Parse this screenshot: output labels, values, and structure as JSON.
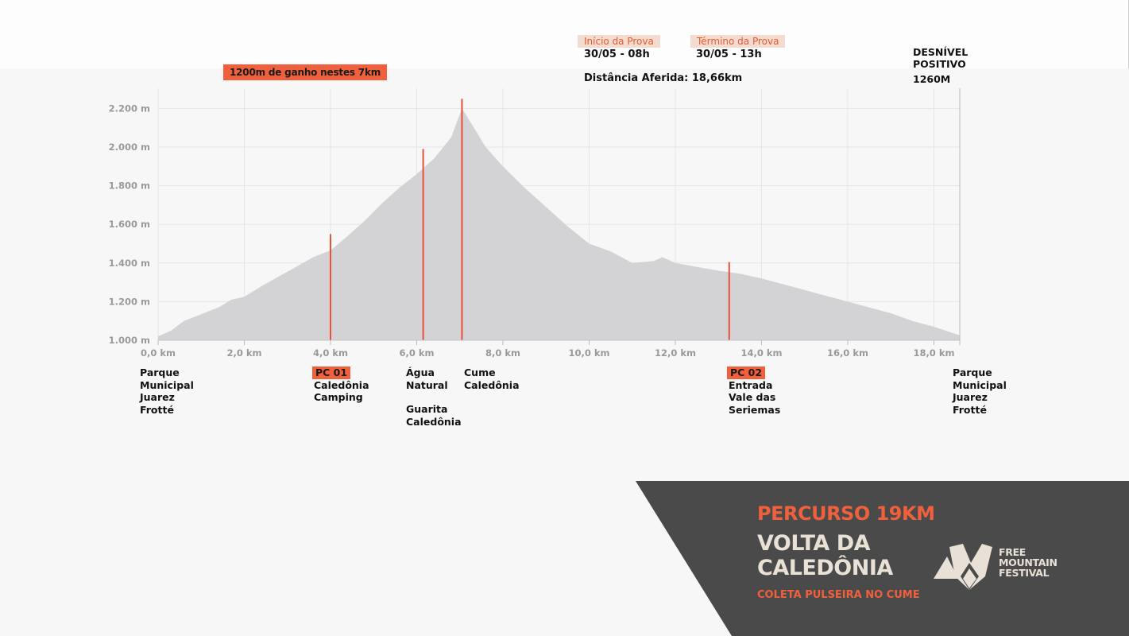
{
  "gain_tag": "1200m de ganho nestes 7km",
  "start": {
    "label": "Início da Prova",
    "value": "30/05 - 08h"
  },
  "end": {
    "label": "Término da Prova",
    "value": "30/05 - 13h"
  },
  "distance": "Distância Aferida: 18,66km",
  "desnivel": {
    "line1": "DESNÍVEL",
    "line2": "POSITIVO",
    "value": "1260M"
  },
  "waypoints": [
    {
      "tag": "",
      "lines": [
        "Parque",
        "Municipal",
        "Juarez",
        "Frotté"
      ]
    },
    {
      "tag": "PC 01",
      "lines": [
        "Caledônia",
        "Camping"
      ]
    },
    {
      "tag": "",
      "lines": [
        "Água",
        "Natural",
        "",
        "Guarita",
        "Caledônia"
      ]
    },
    {
      "tag": "",
      "lines": [
        "Cume",
        "Caledônia"
      ]
    },
    {
      "tag": "PC 02",
      "lines": [
        "Entrada",
        "Vale das",
        "Seriemas"
      ]
    },
    {
      "tag": "",
      "lines": [
        "Parque",
        "Municipal",
        "Juarez",
        "Frotté"
      ]
    }
  ],
  "footer": {
    "title": "PERCURSO 19KM",
    "name_line1": "VOLTA DA",
    "name_line2": "CALEDÔNIA",
    "subtitle": "COLETA PULSEIRA NO CUME",
    "logo_line1": "FREE",
    "logo_line2": "MOUNTAIN",
    "logo_line3": "FESTIVAL"
  },
  "colors": {
    "accent": "#f0603c",
    "area": "#d3d3d5",
    "marker": "#e8503a",
    "panel": "#4a4a4a",
    "cream": "#e9e0d6"
  },
  "chart_data": {
    "type": "area",
    "xlabel": "",
    "ylabel": "",
    "xlim": [
      0,
      18.6
    ],
    "ylim": [
      1000,
      2300
    ],
    "xticks": [
      0,
      2,
      4,
      6,
      8,
      10,
      12,
      14,
      16,
      18
    ],
    "xtick_labels": [
      "0,0 km",
      "2,0 km",
      "4,0 km",
      "6,0 km",
      "8,0 km",
      "10,0 km",
      "12,0 km",
      "14,0 km",
      "16,0 km",
      "18,0 km"
    ],
    "yticks": [
      1000,
      1200,
      1400,
      1600,
      1800,
      2000,
      2200
    ],
    "ytick_labels": [
      "1.000 m",
      "1.200 m",
      "1.400 m",
      "1.600 m",
      "1.800 m",
      "2.000 m",
      "2.200 m"
    ],
    "grid": true,
    "series": [
      {
        "x": [
          0,
          0.3,
          0.6,
          1.0,
          1.4,
          1.7,
          2.0,
          2.4,
          2.8,
          3.2,
          3.6,
          4.0,
          4.4,
          4.8,
          5.2,
          5.6,
          6.0,
          6.4,
          6.8,
          7.05,
          7.3,
          7.6,
          8.0,
          8.5,
          9.0,
          9.5,
          10.0,
          10.5,
          11.0,
          11.5,
          11.7,
          12.0,
          12.5,
          13.0,
          13.5,
          14.0,
          14.5,
          15.0,
          15.5,
          16.0,
          16.5,
          17.0,
          17.5,
          18.0,
          18.6
        ],
        "y": [
          1020,
          1050,
          1100,
          1135,
          1170,
          1210,
          1225,
          1280,
          1330,
          1380,
          1430,
          1465,
          1540,
          1620,
          1710,
          1790,
          1860,
          1940,
          2050,
          2200,
          2110,
          2000,
          1900,
          1790,
          1690,
          1590,
          1500,
          1460,
          1400,
          1410,
          1430,
          1400,
          1380,
          1360,
          1345,
          1320,
          1290,
          1260,
          1230,
          1200,
          1170,
          1140,
          1100,
          1070,
          1025
        ]
      }
    ],
    "markers": [
      {
        "x": 4.0,
        "y": 1550
      },
      {
        "x": 6.15,
        "y": 1990
      },
      {
        "x": 7.05,
        "y": 2250
      },
      {
        "x": 13.25,
        "y": 1405
      }
    ]
  }
}
